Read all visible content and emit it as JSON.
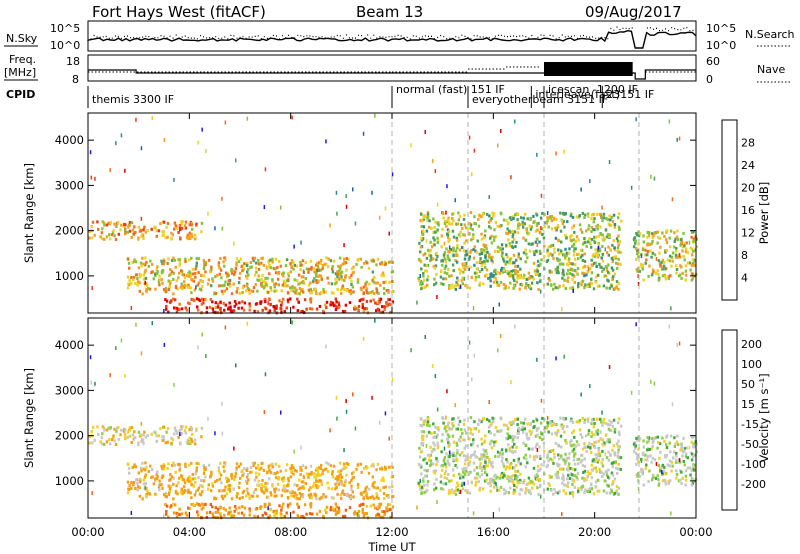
{
  "header": {
    "radar": "Fort Hays West (fitACF)",
    "beam": "Beam 13",
    "date": "09/Aug/2017"
  },
  "noise_panel": {
    "left_label": "N.Sky",
    "right_label": "N.Search",
    "y_ticks": [
      "10^5",
      "10^0"
    ]
  },
  "freq_panel": {
    "left_label_1": "Freq.",
    "left_label_2": "[MHz]",
    "y_ticks_left": [
      "18",
      "8"
    ],
    "y_ticks_right": [
      "60",
      "0"
    ],
    "right_label": "Nave"
  },
  "cpid": {
    "label": "CPID",
    "programs": [
      {
        "name": "themis 3300 IF",
        "start_h": 0.0
      },
      {
        "name": "normal (fast) 151 IF",
        "start_h": 12.0
      },
      {
        "name": "everyotherbeam 3151 IF",
        "start_h": 15.0
      },
      {
        "name": "interleave(fast)",
        "start_h": 17.5
      },
      {
        "name": "icescan -1200 IF",
        "start_h": 18.0
      },
      {
        "name": "23151 IF",
        "start_h": 20.3
      }
    ]
  },
  "x_axis": {
    "title": "Time UT",
    "ticks": [
      "00:00",
      "04:00",
      "08:00",
      "12:00",
      "16:00",
      "20:00",
      "00:00"
    ],
    "range_h": [
      0,
      24
    ],
    "dashed_markers_h": [
      12.0,
      15.0,
      18.0,
      21.75
    ]
  },
  "power_panel": {
    "ylabel": "Slant Range [km]",
    "y_ticks": [
      "1000",
      "2000",
      "3000",
      "4000"
    ],
    "colorbar_label": "Power [dB]",
    "colorbar_ticks": [
      "4",
      "8",
      "12",
      "16",
      "20",
      "24",
      "28"
    ],
    "colors": [
      "#1a1ae6",
      "#1f5fb5",
      "#2f8a8a",
      "#4aa05a",
      "#86c23a",
      "#f0d020",
      "#f5a020",
      "#f07020",
      "#e83a18",
      "#e00000"
    ]
  },
  "velocity_panel": {
    "ylabel": "Slant Range [km]",
    "y_ticks": [
      "1000",
      "2000",
      "3000",
      "4000"
    ],
    "colorbar_label": "Velocity [m s⁻¹]",
    "colorbar_ticks": [
      "200",
      "100",
      "50",
      "15",
      "-15",
      "-50",
      "-100",
      "-200"
    ],
    "colors": [
      "#1a1ae6",
      "#1f8a60",
      "#3aa83a",
      "#8ad040",
      "#c8c8c8",
      "#f5d020",
      "#f5a010",
      "#f06010",
      "#e00000"
    ]
  },
  "chart_data": {
    "type": "heatmap",
    "title": "Fort Hays West (fitACF)  Beam 13  09/Aug/2017",
    "xlabel": "Time UT",
    "ylabel": "Slant Range [km]",
    "xlim_hours": [
      0,
      24
    ],
    "ylim_km": [
      180,
      4600
    ],
    "panels": [
      "Power [dB]",
      "Velocity [m s⁻¹]"
    ],
    "power_range_db": [
      0,
      30
    ],
    "velocity_range_ms": [
      -200,
      200
    ],
    "echo_regions": [
      {
        "t": [
          0.0,
          4.5
        ],
        "r": [
          1800,
          2200
        ],
        "power_db": 20,
        "velocity_ms": -10
      },
      {
        "t": [
          1.5,
          12.0
        ],
        "r": [
          600,
          1400
        ],
        "power_db": 18,
        "velocity_ms": -40
      },
      {
        "t": [
          3.0,
          12.0
        ],
        "r": [
          180,
          500
        ],
        "power_db": 28,
        "velocity_ms": -60
      },
      {
        "t": [
          13.0,
          21.0
        ],
        "r": [
          700,
          2400
        ],
        "power_db": 14,
        "velocity_ms": 5
      },
      {
        "t": [
          21.5,
          24.0
        ],
        "r": [
          900,
          2000
        ],
        "power_db": 16,
        "velocity_ms": 10
      }
    ]
  }
}
